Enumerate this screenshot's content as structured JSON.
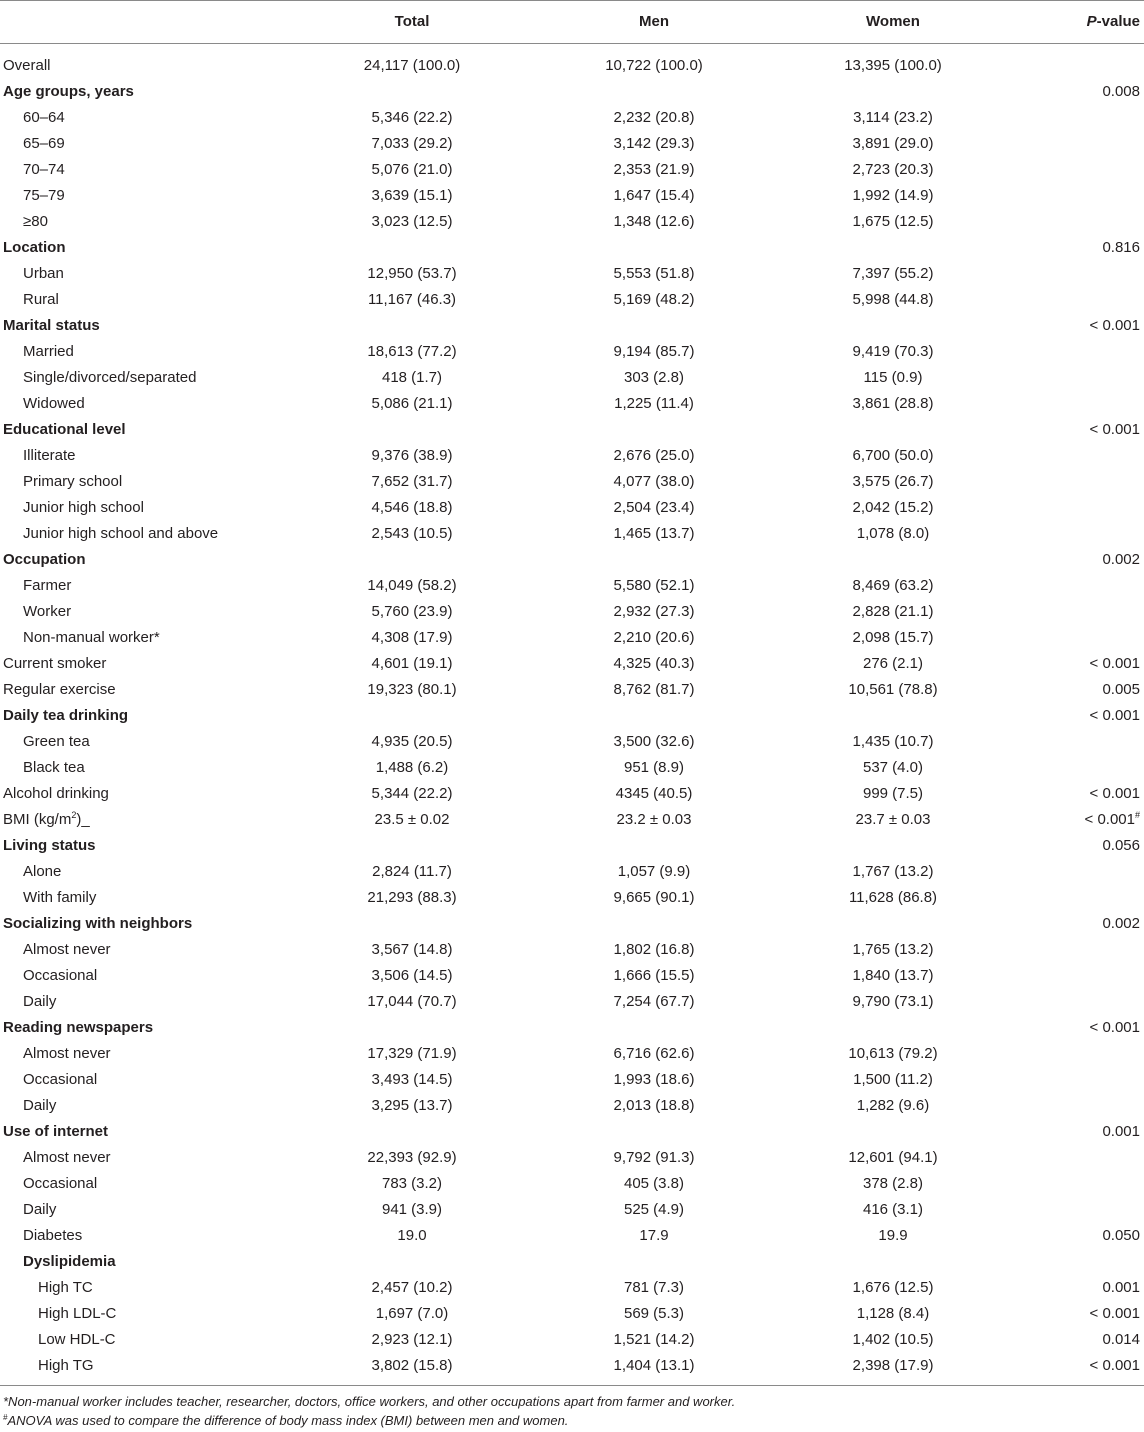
{
  "header": {
    "total": "Total",
    "men": "Men",
    "women": "Women",
    "p_value_italic": "P",
    "p_value_rest": "-value"
  },
  "rows": [
    {
      "label": "Overall",
      "level": 0,
      "total": "24,117 (100.0)",
      "men": "10,722 (100.0)",
      "women": "13,395 (100.0)",
      "p": ""
    },
    {
      "label": "Age groups, years",
      "level": 0,
      "bold": true,
      "total": "",
      "men": "",
      "women": "",
      "p": "0.008"
    },
    {
      "label": "60–64",
      "level": 1,
      "total": "5,346 (22.2)",
      "men": "2,232 (20.8)",
      "women": "3,114 (23.2)",
      "p": ""
    },
    {
      "label": "65–69",
      "level": 1,
      "total": "7,033 (29.2)",
      "men": "3,142 (29.3)",
      "women": "3,891 (29.0)",
      "p": ""
    },
    {
      "label": "70–74",
      "level": 1,
      "total": "5,076 (21.0)",
      "men": "2,353 (21.9)",
      "women": "2,723 (20.3)",
      "p": ""
    },
    {
      "label": "75–79",
      "level": 1,
      "total": "3,639 (15.1)",
      "men": "1,647 (15.4)",
      "women": "1,992 (14.9)",
      "p": ""
    },
    {
      "label": "≥80",
      "level": 1,
      "total": "3,023 (12.5)",
      "men": "1,348 (12.6)",
      "women": "1,675 (12.5)",
      "p": ""
    },
    {
      "label": "Location",
      "level": 0,
      "bold": true,
      "total": "",
      "men": "",
      "women": "",
      "p": "0.816"
    },
    {
      "label": "Urban",
      "level": 1,
      "total": "12,950 (53.7)",
      "men": "5,553 (51.8)",
      "women": "7,397 (55.2)",
      "p": ""
    },
    {
      "label": "Rural",
      "level": 1,
      "total": "11,167 (46.3)",
      "men": "5,169 (48.2)",
      "women": "5,998 (44.8)",
      "p": ""
    },
    {
      "label": "Marital status",
      "level": 0,
      "bold": true,
      "total": "",
      "men": "",
      "women": "",
      "p": "< 0.001"
    },
    {
      "label": "Married",
      "level": 1,
      "total": "18,613 (77.2)",
      "men": "9,194 (85.7)",
      "women": "9,419 (70.3)",
      "p": ""
    },
    {
      "label": "Single/divorced/separated",
      "level": 1,
      "total": "418 (1.7)",
      "men": "303 (2.8)",
      "women": "115 (0.9)",
      "p": ""
    },
    {
      "label": "Widowed",
      "level": 1,
      "total": "5,086 (21.1)",
      "men": "1,225 (11.4)",
      "women": "3,861 (28.8)",
      "p": ""
    },
    {
      "label": "Educational level",
      "level": 0,
      "bold": true,
      "total": "",
      "men": "",
      "women": "",
      "p": "< 0.001"
    },
    {
      "label": "Illiterate",
      "level": 1,
      "total": "9,376 (38.9)",
      "men": "2,676 (25.0)",
      "women": "6,700 (50.0)",
      "p": ""
    },
    {
      "label": "Primary school",
      "level": 1,
      "total": "7,652 (31.7)",
      "men": "4,077 (38.0)",
      "women": "3,575 (26.7)",
      "p": ""
    },
    {
      "label": "Junior high school",
      "level": 1,
      "total": "4,546 (18.8)",
      "men": "2,504 (23.4)",
      "women": "2,042 (15.2)",
      "p": ""
    },
    {
      "label": "Junior high school and above",
      "level": 1,
      "total": "2,543 (10.5)",
      "men": "1,465 (13.7)",
      "women": "1,078 (8.0)",
      "p": ""
    },
    {
      "label": "Occupation",
      "level": 0,
      "bold": true,
      "total": "",
      "men": "",
      "women": "",
      "p": "0.002"
    },
    {
      "label": "Farmer",
      "level": 1,
      "total": "14,049 (58.2)",
      "men": "5,580 (52.1)",
      "women": "8,469 (63.2)",
      "p": ""
    },
    {
      "label": "Worker",
      "level": 1,
      "total": "5,760 (23.9)",
      "men": "2,932 (27.3)",
      "women": "2,828 (21.1)",
      "p": ""
    },
    {
      "label": "Non-manual worker*",
      "level": 1,
      "total": "4,308 (17.9)",
      "men": "2,210 (20.6)",
      "women": "2,098 (15.7)",
      "p": ""
    },
    {
      "label": "Current smoker",
      "level": 0,
      "total": "4,601 (19.1)",
      "men": "4,325 (40.3)",
      "women": "276 (2.1)",
      "p": "< 0.001"
    },
    {
      "label": "Regular exercise",
      "level": 0,
      "total": "19,323 (80.1)",
      "men": "8,762 (81.7)",
      "women": "10,561 (78.8)",
      "p": "0.005"
    },
    {
      "label": "Daily tea drinking",
      "level": 0,
      "bold": true,
      "total": "",
      "men": "",
      "women": "",
      "p": "< 0.001"
    },
    {
      "label": "Green tea",
      "level": 1,
      "total": "4,935 (20.5)",
      "men": "3,500 (32.6)",
      "women": "1,435 (10.7)",
      "p": ""
    },
    {
      "label": "Black tea",
      "level": 1,
      "total": "1,488 (6.2)",
      "men": "951 (8.9)",
      "women": "537 (4.0)",
      "p": ""
    },
    {
      "label": "Alcohol drinking",
      "level": 0,
      "total": "5,344 (22.2)",
      "men": "4345 (40.5)",
      "women": "999 (7.5)",
      "p": "< 0.001"
    },
    {
      "label": "BMI (kg/m",
      "label_sup": "2",
      "label_tail": ")_",
      "level": 0,
      "total": "23.5 ± 0.02",
      "men": "23.2 ± 0.03",
      "women": "23.7 ± 0.03",
      "p": "< 0.001",
      "p_sup": "#"
    },
    {
      "label": "Living status",
      "level": 0,
      "bold": true,
      "total": "",
      "men": "",
      "women": "",
      "p": "0.056"
    },
    {
      "label": "Alone",
      "level": 1,
      "total": "2,824 (11.7)",
      "men": "1,057 (9.9)",
      "women": "1,767 (13.2)",
      "p": ""
    },
    {
      "label": "With family",
      "level": 1,
      "total": "21,293 (88.3)",
      "men": "9,665 (90.1)",
      "women": "11,628 (86.8)",
      "p": ""
    },
    {
      "label": "Socializing with neighbors",
      "level": 0,
      "bold": true,
      "total": "",
      "men": "",
      "women": "",
      "p": "0.002"
    },
    {
      "label": "Almost never",
      "level": 1,
      "total": "3,567 (14.8)",
      "men": "1,802 (16.8)",
      "women": "1,765 (13.2)",
      "p": ""
    },
    {
      "label": "Occasional",
      "level": 1,
      "total": "3,506 (14.5)",
      "men": "1,666 (15.5)",
      "women": "1,840 (13.7)",
      "p": ""
    },
    {
      "label": "Daily",
      "level": 1,
      "total": "17,044 (70.7)",
      "men": "7,254 (67.7)",
      "women": "9,790 (73.1)",
      "p": ""
    },
    {
      "label": "Reading newspapers",
      "level": 0,
      "bold": true,
      "total": "",
      "men": "",
      "women": "",
      "p": "< 0.001"
    },
    {
      "label": "Almost never",
      "level": 1,
      "total": "17,329 (71.9)",
      "men": "6,716 (62.6)",
      "women": "10,613 (79.2)",
      "p": ""
    },
    {
      "label": "Occasional",
      "level": 1,
      "total": "3,493 (14.5)",
      "men": "1,993 (18.6)",
      "women": "1,500 (11.2)",
      "p": ""
    },
    {
      "label": "Daily",
      "level": 1,
      "total": "3,295 (13.7)",
      "men": "2,013 (18.8)",
      "women": "1,282 (9.6)",
      "p": ""
    },
    {
      "label": "Use of internet",
      "level": 0,
      "bold": true,
      "total": "",
      "men": "",
      "women": "",
      "p": "0.001"
    },
    {
      "label": "Almost never",
      "level": 1,
      "total": "22,393 (92.9)",
      "men": "9,792 (91.3)",
      "women": "12,601 (94.1)",
      "p": ""
    },
    {
      "label": "Occasional",
      "level": 1,
      "total": "783 (3.2)",
      "men": "405 (3.8)",
      "women": "378 (2.8)",
      "p": ""
    },
    {
      "label": "Daily",
      "level": 1,
      "total": "941 (3.9)",
      "men": "525 (4.9)",
      "women": "416 (3.1)",
      "p": ""
    },
    {
      "label": "Diabetes",
      "level": 2,
      "total": "19.0",
      "men": "17.9",
      "women": "19.9",
      "p": "0.050"
    },
    {
      "label": "Dyslipidemia",
      "level": 2,
      "bold": true,
      "total": "",
      "men": "",
      "women": "",
      "p": ""
    },
    {
      "label": "High TC",
      "level": 3,
      "total": "2,457 (10.2)",
      "men": "781 (7.3)",
      "women": "1,676 (12.5)",
      "p": "0.001"
    },
    {
      "label": "High LDL-C",
      "level": 3,
      "total": "1,697 (7.0)",
      "men": "569 (5.3)",
      "women": "1,128 (8.4)",
      "p": "< 0.001"
    },
    {
      "label": "Low HDL-C",
      "level": 3,
      "total": "2,923 (12.1)",
      "men": "1,521 (14.2)",
      "women": "1,402 (10.5)",
      "p": "0.014"
    },
    {
      "label": "High TG",
      "level": 3,
      "total": "3,802 (15.8)",
      "men": "1,404 (13.1)",
      "women": "2,398 (17.9)",
      "p": "< 0.001"
    }
  ],
  "footnotes": {
    "note1": "*Non-manual worker includes teacher, researcher, doctors, office workers, and other occupations apart from farmer and worker.",
    "note2_mark": "#",
    "note2": "ANOVA was used to compare the difference of body mass index (BMI) between men and women."
  }
}
